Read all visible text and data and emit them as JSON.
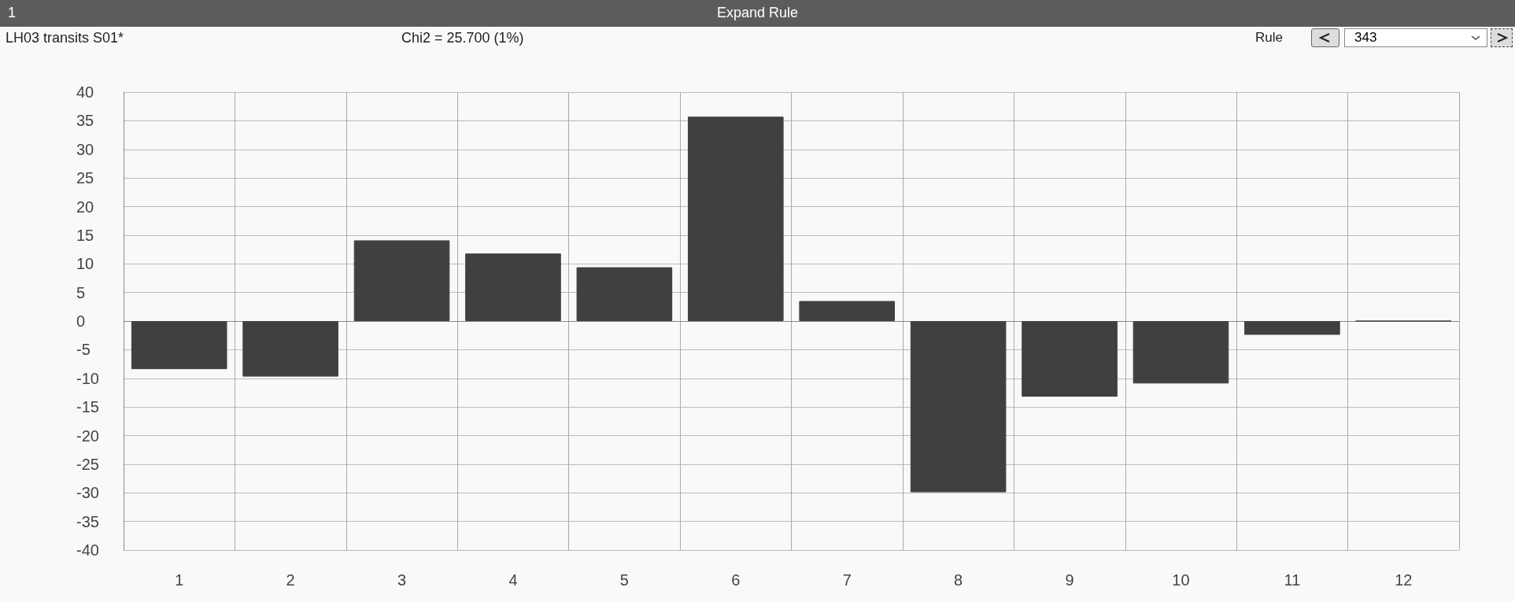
{
  "chart_data": {
    "type": "bar",
    "title": "LH03 transits S01*",
    "subtitle": "Chi2 = 25.700 (1%)",
    "annotations": [
      "1",
      "Expand Rule",
      "Rule",
      "343"
    ],
    "categories": [
      "1",
      "2",
      "3",
      "4",
      "5",
      "6",
      "7",
      "8",
      "9",
      "10",
      "11",
      "12"
    ],
    "values": [
      -8.4,
      -9.7,
      14.1,
      11.8,
      9.4,
      35.7,
      3.5,
      -29.9,
      -13.2,
      -10.9,
      -2.4,
      0
    ],
    "color": "#404040",
    "ylim": [
      -40,
      40
    ],
    "yticks": [
      -40,
      -35,
      -30,
      -25,
      -20,
      -15,
      -10,
      -5,
      0,
      5,
      10,
      15,
      20,
      25,
      30,
      35,
      40
    ],
    "grid": true
  }
}
